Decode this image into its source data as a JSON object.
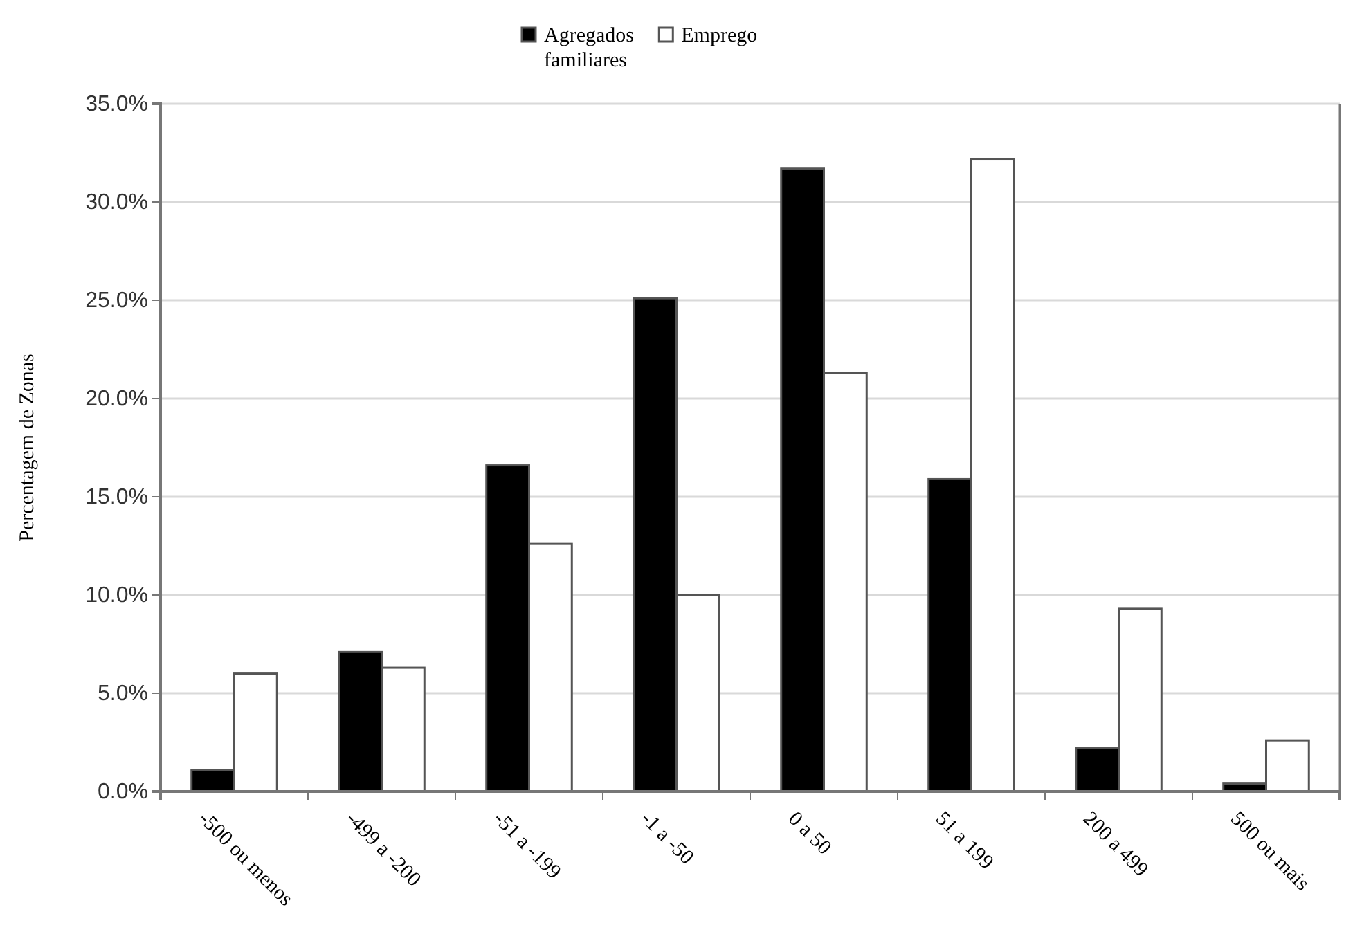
{
  "chart_data": {
    "type": "bar",
    "ylabel": "Percentagem de Zonas",
    "categories": [
      "-500 ou menos",
      "-499 a -200",
      "-51 a -199",
      "-1 a -50",
      "0 a 50",
      "51 a 199",
      "200 a 499",
      "500 ou mais"
    ],
    "series": [
      {
        "name": "Agregados familiares",
        "color": "#000000",
        "values": [
          1.1,
          7.1,
          16.6,
          25.1,
          31.7,
          15.9,
          2.2,
          0.4
        ]
      },
      {
        "name": "Emprego",
        "color": "#ffffff",
        "values": [
          6.0,
          6.3,
          12.6,
          10.0,
          21.3,
          32.2,
          9.3,
          2.6
        ]
      }
    ],
    "ylim": [
      0,
      35
    ],
    "yticks": [
      {
        "value": 0,
        "label": "0.0%"
      },
      {
        "value": 5,
        "label": "5.0%"
      },
      {
        "value": 10,
        "label": "10.0%"
      },
      {
        "value": 15,
        "label": "15.0%"
      },
      {
        "value": 20,
        "label": "20.0%"
      },
      {
        "value": 25,
        "label": "25.0%"
      },
      {
        "value": 30,
        "label": "30.0%"
      },
      {
        "value": 35,
        "label": "35.0%"
      }
    ],
    "grid": "y",
    "legend": "top"
  }
}
